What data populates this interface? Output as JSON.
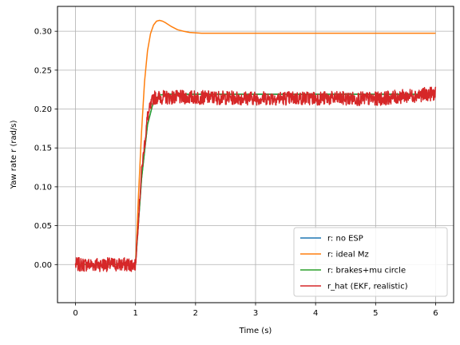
{
  "chart_data": {
    "type": "line",
    "title": "",
    "xlabel": "Time (s)",
    "ylabel": "Yaw rate r (rad/s)",
    "xlim": [
      -0.3,
      6.3
    ],
    "ylim": [
      -0.049,
      0.332
    ],
    "xticks": [
      0,
      1,
      2,
      3,
      4,
      5,
      6
    ],
    "yticks": [
      0.0,
      0.05,
      0.1,
      0.15,
      0.2,
      0.25,
      0.3
    ],
    "xtick_labels": [
      "0",
      "1",
      "2",
      "3",
      "4",
      "5",
      "6"
    ],
    "ytick_labels": [
      "0.00",
      "0.05",
      "0.10",
      "0.15",
      "0.20",
      "0.25",
      "0.30"
    ],
    "grid": true,
    "legend_position": "lower-right",
    "series": [
      {
        "name": "r: no ESP",
        "color": "#1f77b4",
        "x": [
          0,
          1.0,
          1.1,
          1.2,
          1.3,
          1.4,
          1.5,
          2.0,
          3.0,
          4.0,
          5.0,
          6.0
        ],
        "y": [
          0,
          0,
          0.11,
          0.18,
          0.21,
          0.218,
          0.219,
          0.219,
          0.219,
          0.219,
          0.219,
          0.219
        ]
      },
      {
        "name": "r: ideal Mz",
        "color": "#ff7f0e",
        "x": [
          0,
          1.0,
          1.05,
          1.1,
          1.15,
          1.2,
          1.25,
          1.3,
          1.35,
          1.4,
          1.45,
          1.5,
          1.6,
          1.7,
          1.8,
          1.9,
          2.0,
          2.1,
          2.2,
          2.5,
          3.0,
          4.0,
          5.0,
          6.0
        ],
        "y": [
          0,
          0,
          0.09,
          0.17,
          0.235,
          0.275,
          0.297,
          0.308,
          0.313,
          0.314,
          0.313,
          0.311,
          0.306,
          0.302,
          0.3,
          0.2985,
          0.298,
          0.2975,
          0.2975,
          0.2975,
          0.2975,
          0.2975,
          0.2975,
          0.2975
        ]
      },
      {
        "name": "r: brakes+mu circle",
        "color": "#2ca02c",
        "x": [
          0,
          1.0,
          1.1,
          1.2,
          1.3,
          1.4,
          1.5,
          2.0,
          3.0,
          4.0,
          5.0,
          6.0
        ],
        "y": [
          0,
          0,
          0.11,
          0.18,
          0.21,
          0.218,
          0.219,
          0.219,
          0.219,
          0.219,
          0.219,
          0.219
        ]
      },
      {
        "name": "r_hat (EKF, realistic)",
        "color": "#d62728",
        "x": [
          0,
          0.5,
          1.0,
          1.1,
          1.2,
          1.3,
          2.0,
          3.0,
          4.0,
          5.0,
          6.0
        ],
        "y": [
          0,
          0,
          0,
          0.12,
          0.19,
          0.215,
          0.215,
          0.214,
          0.214,
          0.213,
          0.22
        ]
      }
    ]
  }
}
